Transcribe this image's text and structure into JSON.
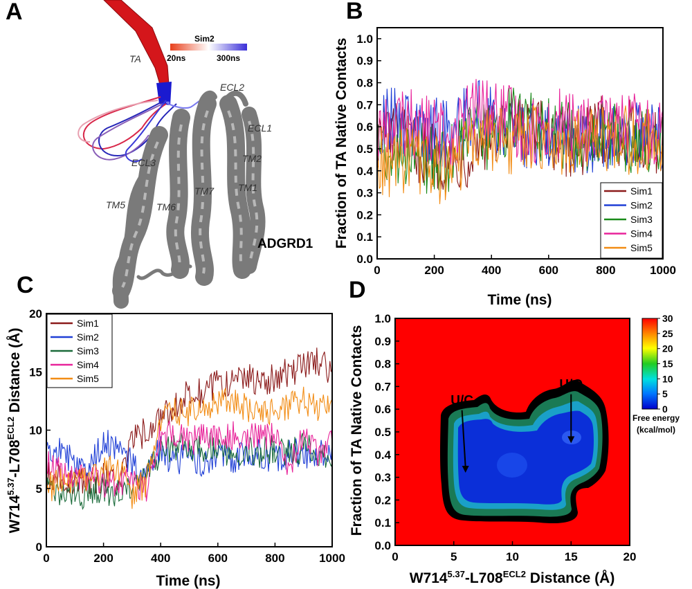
{
  "panels": {
    "a": "A",
    "b": "B",
    "c": "C",
    "d": "D"
  },
  "structure": {
    "protein_label": "ADGRD1",
    "colorbar_title": "Sim2",
    "colorbar_min": "20ns",
    "colorbar_max": "300ns",
    "colorbar_colors": [
      "#e8401c",
      "#ffffff",
      "#3a2fd8"
    ],
    "labels": {
      "ta": "TA",
      "ecl2": "ECL2",
      "ecl1": "ECL1",
      "ecl3": "ECL3",
      "tm2": "TM2",
      "tm1": "TM1",
      "tm7": "TM7",
      "tm5": "TM5",
      "tm6": "TM6"
    }
  },
  "chart_data": [
    {
      "id": "B",
      "type": "line",
      "title": "",
      "xlabel": "Time (ns)",
      "ylabel": "Fraction of TA Native Contacts",
      "xlim": [
        0,
        1000
      ],
      "ylim": [
        0,
        1.05
      ],
      "xticks": [
        0,
        200,
        400,
        600,
        800,
        1000
      ],
      "yticks": [
        "0.0",
        "0.1",
        "0.2",
        "0.3",
        "0.4",
        "0.5",
        "0.6",
        "0.7",
        "0.8",
        "0.9",
        "1.0"
      ],
      "legend_position": "bottom-right",
      "series": [
        {
          "name": "Sim1",
          "color": "#8b1a1a",
          "values": [
            0.55,
            0.58,
            0.52,
            0.5,
            0.48,
            0.45,
            0.47,
            0.52,
            0.56,
            0.55,
            0.58,
            0.57,
            0.55,
            0.53,
            0.52,
            0.55,
            0.6,
            0.58,
            0.56,
            0.55,
            0.54
          ]
        },
        {
          "name": "Sim2",
          "color": "#1f3fd6",
          "values": [
            0.62,
            0.65,
            0.62,
            0.6,
            0.58,
            0.56,
            0.62,
            0.66,
            0.64,
            0.6,
            0.58,
            0.56,
            0.55,
            0.56,
            0.54,
            0.55,
            0.56,
            0.55,
            0.57,
            0.56,
            0.55
          ]
        },
        {
          "name": "Sim3",
          "color": "#1a8a1a",
          "values": [
            0.52,
            0.5,
            0.48,
            0.46,
            0.45,
            0.44,
            0.5,
            0.58,
            0.55,
            0.62,
            0.65,
            0.6,
            0.58,
            0.56,
            0.55,
            0.54,
            0.56,
            0.55,
            0.54,
            0.53,
            0.52
          ]
        },
        {
          "name": "Sim4",
          "color": "#e8239a",
          "values": [
            0.58,
            0.6,
            0.62,
            0.6,
            0.58,
            0.55,
            0.62,
            0.68,
            0.66,
            0.64,
            0.6,
            0.58,
            0.6,
            0.62,
            0.6,
            0.58,
            0.6,
            0.62,
            0.6,
            0.58,
            0.6
          ]
        },
        {
          "name": "Sim5",
          "color": "#f28c14",
          "values": [
            0.45,
            0.42,
            0.44,
            0.43,
            0.4,
            0.42,
            0.46,
            0.56,
            0.55,
            0.54,
            0.53,
            0.54,
            0.55,
            0.53,
            0.54,
            0.53,
            0.55,
            0.54,
            0.53,
            0.52,
            0.52
          ]
        }
      ]
    },
    {
      "id": "C",
      "type": "line",
      "title": "",
      "xlabel": "Time (ns)",
      "ylabel_main": "W714",
      "ylabel_sup1": "5.37",
      "ylabel_mid": "-L708",
      "ylabel_sup2": "ECL2",
      "ylabel_end": " Distance (Å)",
      "xlim": [
        0,
        1000
      ],
      "ylim": [
        0,
        20
      ],
      "xticks": [
        0,
        200,
        400,
        600,
        800,
        1000
      ],
      "yticks": [
        0,
        5,
        10,
        15,
        20
      ],
      "legend_position": "top-left",
      "series": [
        {
          "name": "Sim1",
          "color": "#8b1a1a",
          "values": [
            6,
            6,
            5.5,
            5.5,
            6,
            5.5,
            9,
            10,
            11,
            12,
            13.5,
            13,
            14,
            14,
            14.5,
            14,
            14.5,
            15,
            15.5,
            16,
            15
          ]
        },
        {
          "name": "Sim2",
          "color": "#1f3fd6",
          "values": [
            9,
            8,
            7.5,
            7,
            9,
            8.5,
            7,
            6,
            8.5,
            7,
            8,
            7,
            8,
            7.5,
            8,
            8,
            7.5,
            8,
            8,
            8,
            8
          ]
        },
        {
          "name": "Sim3",
          "color": "#1a6b3a",
          "values": [
            5,
            4.5,
            4.5,
            4.5,
            5,
            4.5,
            5,
            6,
            8,
            8.5,
            8.5,
            8.5,
            8.5,
            8,
            8.5,
            8,
            8.5,
            8,
            8.5,
            8,
            8
          ]
        },
        {
          "name": "Sim4",
          "color": "#e8239a",
          "values": [
            7,
            6.5,
            6,
            6,
            5.5,
            5.5,
            5.5,
            5,
            9.5,
            9.5,
            9,
            9.5,
            9.5,
            9.5,
            9.5,
            9.5,
            9.5,
            7,
            9.5,
            8,
            9
          ]
        },
        {
          "name": "Sim5",
          "color": "#f28c14",
          "values": [
            5,
            5.5,
            6,
            5.5,
            6.5,
            7,
            4.5,
            5.5,
            11,
            11.5,
            11.5,
            12,
            12.5,
            12.5,
            12,
            12,
            11.5,
            12,
            12.5,
            12,
            12
          ]
        }
      ]
    },
    {
      "id": "D",
      "type": "heatmap",
      "title": "",
      "xlabel_main": "W714",
      "xlabel_sup1": "5.37",
      "xlabel_mid": "-L708",
      "xlabel_sup2": "ECL2",
      "xlabel_end": " Distance (Å)",
      "ylabel": "Fraction of TA Native Contacts",
      "xlim": [
        0,
        20
      ],
      "ylim": [
        0,
        1.0
      ],
      "xticks": [
        0,
        5,
        10,
        15,
        20
      ],
      "yticks": [
        "0.0",
        "0.1",
        "0.2",
        "0.3",
        "0.4",
        "0.5",
        "0.6",
        "0.7",
        "0.8",
        "0.9",
        "1.0"
      ],
      "colorbar": {
        "min": 0,
        "max": 30,
        "ticks": [
          0,
          5,
          10,
          15,
          20,
          25,
          30
        ],
        "label_line1": "Free energy",
        "label_line2": "(kcal/mol)"
      },
      "minima": [
        {
          "label": "U/C",
          "x": 6.0,
          "y": 0.32,
          "label_x": 5.7,
          "label_y": 0.62
        },
        {
          "label": "U/O",
          "x": 15.0,
          "y": 0.45,
          "label_x": 15.0,
          "label_y": 0.69
        }
      ]
    }
  ]
}
